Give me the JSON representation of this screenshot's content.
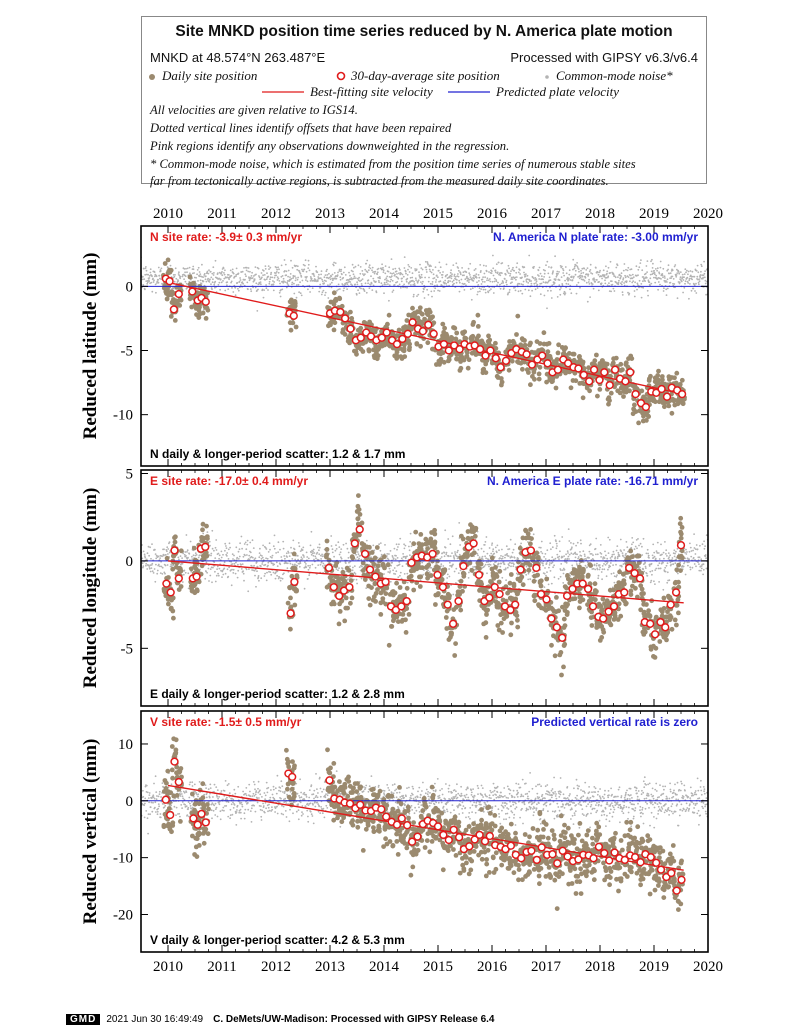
{
  "legend": {
    "title": "Site MNKD position time series reduced by N. America plate motion",
    "site_info": "MNKD at 48.574°N 263.487°E",
    "processing": "Processed with GIPSY v6.3/v6.4",
    "daily_label": "Daily site position",
    "avg_label": "30-day-average site position",
    "noise_label": "Common-mode noise*",
    "bestfit_label": "Best-fitting site velocity",
    "predicted_label": "Predicted plate velocity",
    "notes": [
      "All velocities are given relative to IGS14.",
      "Dotted vertical lines identify offsets that have been repaired",
      "Pink regions identify any observations downweighted in the regression.",
      "* Common-mode noise, which is estimated from the position time series of numerous stable sites",
      "far from tectonically active regions, is subtracted from the measured daily site coordinates."
    ]
  },
  "colors": {
    "daily": "#9b8a6f",
    "noise": "#b3b3b3",
    "avg_edge": "#e01b1b",
    "bestfit": "#e01b1b",
    "predicted": "#2020d0",
    "axis": "#000000"
  },
  "x_ticks": [
    "2010",
    "2011",
    "2012",
    "2013",
    "2014",
    "2015",
    "2016",
    "2017",
    "2018",
    "2019",
    "2020"
  ],
  "chart_data": [
    {
      "type": "scatter",
      "component": "N",
      "ylabel": "Reduced latitude (mm)",
      "xlim": [
        2009.5,
        2020.0
      ],
      "ylim": [
        -14,
        4.7
      ],
      "yticks": [
        0,
        -5,
        -10
      ],
      "rate_label": "N site rate:  -3.9± 0.3 mm/yr",
      "plate_label": "N. America N plate rate: -3.00 mm/yr",
      "scatter_label": "N daily & longer-period scatter:   1.2 &   1.7 mm",
      "site_rate": -0.92,
      "fit": {
        "x": [
          2010.0,
          2019.55
        ],
        "y": [
          0.3,
          -8.4
        ]
      },
      "averages": [
        [
          2009.96,
          0.6
        ],
        [
          2010.03,
          0.4
        ],
        [
          2010.11,
          -1.8
        ],
        [
          2010.2,
          -0.6
        ],
        [
          2010.45,
          -0.4
        ],
        [
          2010.55,
          -1.1
        ],
        [
          2010.62,
          -0.9
        ],
        [
          2010.7,
          -1.2
        ],
        [
          2012.25,
          -2.1
        ],
        [
          2012.33,
          -2.3
        ],
        [
          2013.0,
          -2.1
        ],
        [
          2013.09,
          -1.9
        ],
        [
          2013.19,
          -2.0
        ],
        [
          2013.28,
          -2.5
        ],
        [
          2013.38,
          -3.3
        ],
        [
          2013.48,
          -4.2
        ],
        [
          2013.57,
          -4.0
        ],
        [
          2013.67,
          -3.6
        ],
        [
          2013.76,
          -3.9
        ],
        [
          2013.86,
          -4.2
        ],
        [
          2013.96,
          -4.0
        ],
        [
          2014.05,
          -3.6
        ],
        [
          2014.15,
          -4.2
        ],
        [
          2014.24,
          -4.5
        ],
        [
          2014.34,
          -4.1
        ],
        [
          2014.44,
          -3.7
        ],
        [
          2014.53,
          -2.8
        ],
        [
          2014.63,
          -3.3
        ],
        [
          2014.72,
          -3.5
        ],
        [
          2014.82,
          -3.0
        ],
        [
          2014.92,
          -3.7
        ],
        [
          2015.01,
          -4.7
        ],
        [
          2015.11,
          -4.5
        ],
        [
          2015.2,
          -5.0
        ],
        [
          2015.3,
          -4.6
        ],
        [
          2015.4,
          -4.9
        ],
        [
          2015.49,
          -4.5
        ],
        [
          2015.59,
          -4.7
        ],
        [
          2015.68,
          -4.6
        ],
        [
          2015.78,
          -4.9
        ],
        [
          2015.88,
          -5.4
        ],
        [
          2015.97,
          -5.0
        ],
        [
          2016.07,
          -5.6
        ],
        [
          2016.16,
          -6.3
        ],
        [
          2016.26,
          -5.8
        ],
        [
          2016.36,
          -5.2
        ],
        [
          2016.45,
          -4.9
        ],
        [
          2016.55,
          -5.1
        ],
        [
          2016.64,
          -5.3
        ],
        [
          2016.74,
          -6.1
        ],
        [
          2016.84,
          -5.7
        ],
        [
          2016.93,
          -5.4
        ],
        [
          2017.03,
          -6.0
        ],
        [
          2017.12,
          -6.7
        ],
        [
          2017.22,
          -6.5
        ],
        [
          2017.32,
          -5.7
        ],
        [
          2017.41,
          -6.0
        ],
        [
          2017.51,
          -6.3
        ],
        [
          2017.6,
          -6.4
        ],
        [
          2017.7,
          -6.9
        ],
        [
          2017.8,
          -7.4
        ],
        [
          2017.89,
          -6.5
        ],
        [
          2017.99,
          -7.3
        ],
        [
          2018.08,
          -6.7
        ],
        [
          2018.18,
          -7.7
        ],
        [
          2018.28,
          -6.5
        ],
        [
          2018.37,
          -7.2
        ],
        [
          2018.47,
          -7.4
        ],
        [
          2018.56,
          -6.7
        ],
        [
          2018.66,
          -8.4
        ],
        [
          2018.76,
          -9.1
        ],
        [
          2018.85,
          -9.4
        ],
        [
          2018.95,
          -8.2
        ],
        [
          2019.04,
          -8.3
        ],
        [
          2019.14,
          -8.0
        ],
        [
          2019.24,
          -8.6
        ],
        [
          2019.33,
          -7.9
        ],
        [
          2019.43,
          -8.1
        ],
        [
          2019.52,
          -8.4
        ]
      ]
    },
    {
      "type": "scatter",
      "component": "E",
      "ylabel": "Reduced longitude (mm)",
      "xlim": [
        2009.5,
        2020.0
      ],
      "ylim": [
        -8.3,
        5.2
      ],
      "yticks": [
        5,
        0,
        -5
      ],
      "rate_label": "E site rate: -17.0± 0.4 mm/yr",
      "plate_label": "N. America E plate rate: -16.71 mm/yr",
      "scatter_label": "E daily & longer-period scatter:   1.2 &   2.8 mm",
      "site_rate": -0.27,
      "fit": {
        "x": [
          2010.0,
          2019.55
        ],
        "y": [
          0.0,
          -2.4
        ]
      },
      "averages": [
        [
          2009.97,
          -1.3
        ],
        [
          2010.05,
          -1.8
        ],
        [
          2010.12,
          0.6
        ],
        [
          2010.2,
          -1.0
        ],
        [
          2010.46,
          -1.0
        ],
        [
          2010.53,
          -0.9
        ],
        [
          2010.61,
          0.7
        ],
        [
          2010.69,
          0.8
        ],
        [
          2012.27,
          -3.0
        ],
        [
          2012.34,
          -1.2
        ],
        [
          2012.98,
          -0.4
        ],
        [
          2013.07,
          -1.5
        ],
        [
          2013.17,
          -2.0
        ],
        [
          2013.26,
          -1.7
        ],
        [
          2013.36,
          -1.5
        ],
        [
          2013.46,
          1.0
        ],
        [
          2013.55,
          1.8
        ],
        [
          2013.65,
          0.4
        ],
        [
          2013.74,
          -0.5
        ],
        [
          2013.84,
          -0.9
        ],
        [
          2013.94,
          -1.3
        ],
        [
          2014.03,
          -1.2
        ],
        [
          2014.13,
          -2.6
        ],
        [
          2014.22,
          -2.8
        ],
        [
          2014.32,
          -2.6
        ],
        [
          2014.42,
          -2.3
        ],
        [
          2014.51,
          -0.1
        ],
        [
          2014.61,
          0.2
        ],
        [
          2014.7,
          0.3
        ],
        [
          2014.8,
          0.2
        ],
        [
          2014.9,
          0.4
        ],
        [
          2014.99,
          -0.8
        ],
        [
          2015.09,
          -1.5
        ],
        [
          2015.18,
          -2.5
        ],
        [
          2015.28,
          -3.6
        ],
        [
          2015.38,
          -2.3
        ],
        [
          2015.47,
          -0.3
        ],
        [
          2015.57,
          0.8
        ],
        [
          2015.66,
          1.0
        ],
        [
          2015.76,
          -0.8
        ],
        [
          2015.86,
          -2.3
        ],
        [
          2015.95,
          -2.1
        ],
        [
          2016.05,
          -1.5
        ],
        [
          2016.14,
          -1.9
        ],
        [
          2016.24,
          -2.6
        ],
        [
          2016.34,
          -2.8
        ],
        [
          2016.43,
          -2.5
        ],
        [
          2016.53,
          -0.5
        ],
        [
          2016.62,
          0.5
        ],
        [
          2016.72,
          0.6
        ],
        [
          2016.82,
          -0.4
        ],
        [
          2016.91,
          -1.9
        ],
        [
          2017.01,
          -2.2
        ],
        [
          2017.1,
          -3.3
        ],
        [
          2017.2,
          -3.8
        ],
        [
          2017.3,
          -4.4
        ],
        [
          2017.39,
          -2.0
        ],
        [
          2017.49,
          -1.6
        ],
        [
          2017.58,
          -1.3
        ],
        [
          2017.68,
          -1.3
        ],
        [
          2017.78,
          -1.6
        ],
        [
          2017.87,
          -2.6
        ],
        [
          2017.97,
          -3.2
        ],
        [
          2018.06,
          -3.3
        ],
        [
          2018.16,
          -2.9
        ],
        [
          2018.26,
          -2.6
        ],
        [
          2018.35,
          -1.9
        ],
        [
          2018.45,
          -1.8
        ],
        [
          2018.54,
          -0.4
        ],
        [
          2018.64,
          -0.7
        ],
        [
          2018.74,
          -1.0
        ],
        [
          2018.83,
          -3.5
        ],
        [
          2018.93,
          -3.6
        ],
        [
          2019.02,
          -4.2
        ],
        [
          2019.12,
          -3.5
        ],
        [
          2019.21,
          -3.8
        ],
        [
          2019.31,
          -2.5
        ],
        [
          2019.41,
          -1.8
        ],
        [
          2019.5,
          0.9
        ]
      ]
    },
    {
      "type": "scatter",
      "component": "V",
      "ylabel": "Reduced vertical (mm)",
      "xlim": [
        2009.5,
        2020.0
      ],
      "ylim": [
        -26.6,
        15.8
      ],
      "yticks": [
        10,
        0,
        -10,
        -20
      ],
      "rate_label": "V site rate:  -1.5± 0.5 mm/yr",
      "plate_label": "Predicted vertical rate is zero",
      "scatter_label": "V daily & longer-period scatter:   4.2 &   5.3 mm",
      "site_rate": -1.5,
      "fit": {
        "x": [
          2010.0,
          2019.55
        ],
        "y": [
          2.7,
          -12.2
        ]
      },
      "averages": [
        [
          2009.96,
          0.2
        ],
        [
          2010.04,
          -2.5
        ],
        [
          2010.12,
          6.9
        ],
        [
          2010.2,
          3.3
        ],
        [
          2010.47,
          -3.1
        ],
        [
          2010.55,
          -4.2
        ],
        [
          2010.62,
          -2.3
        ],
        [
          2010.7,
          -3.8
        ],
        [
          2012.23,
          4.8
        ],
        [
          2012.3,
          4.2
        ],
        [
          2012.99,
          3.6
        ],
        [
          2013.08,
          0.4
        ],
        [
          2013.18,
          0.2
        ],
        [
          2013.27,
          -0.3
        ],
        [
          2013.37,
          -0.5
        ],
        [
          2013.47,
          -1.3
        ],
        [
          2013.56,
          -0.7
        ],
        [
          2013.66,
          -1.7
        ],
        [
          2013.76,
          -1.8
        ],
        [
          2013.85,
          -1.2
        ],
        [
          2013.95,
          -1.5
        ],
        [
          2014.04,
          -2.8
        ],
        [
          2014.14,
          -3.7
        ],
        [
          2014.24,
          -4.2
        ],
        [
          2014.33,
          -3.1
        ],
        [
          2014.43,
          -4.3
        ],
        [
          2014.52,
          -7.2
        ],
        [
          2014.62,
          -6.3
        ],
        [
          2014.72,
          -4.1
        ],
        [
          2014.81,
          -3.5
        ],
        [
          2014.91,
          -3.9
        ],
        [
          2015.0,
          -4.5
        ],
        [
          2015.1,
          -6.0
        ],
        [
          2015.2,
          -6.9
        ],
        [
          2015.29,
          -5.1
        ],
        [
          2015.39,
          -6.4
        ],
        [
          2015.48,
          -8.5
        ],
        [
          2015.58,
          -8.0
        ],
        [
          2015.68,
          -6.8
        ],
        [
          2015.77,
          -6.0
        ],
        [
          2015.87,
          -7.1
        ],
        [
          2015.96,
          -6.2
        ],
        [
          2016.06,
          -7.8
        ],
        [
          2016.16,
          -8.1
        ],
        [
          2016.25,
          -8.5
        ],
        [
          2016.35,
          -7.9
        ],
        [
          2016.44,
          -9.5
        ],
        [
          2016.54,
          -10.1
        ],
        [
          2016.64,
          -9.0
        ],
        [
          2016.73,
          -8.8
        ],
        [
          2016.83,
          -10.4
        ],
        [
          2016.92,
          -8.2
        ],
        [
          2017.02,
          -9.5
        ],
        [
          2017.12,
          -9.4
        ],
        [
          2017.21,
          -11.0
        ],
        [
          2017.31,
          -8.8
        ],
        [
          2017.4,
          -9.8
        ],
        [
          2017.5,
          -10.6
        ],
        [
          2017.6,
          -10.3
        ],
        [
          2017.69,
          -9.5
        ],
        [
          2017.79,
          -9.6
        ],
        [
          2017.88,
          -10.1
        ],
        [
          2017.98,
          -8.1
        ],
        [
          2018.08,
          -9.2
        ],
        [
          2018.17,
          -10.5
        ],
        [
          2018.27,
          -9.1
        ],
        [
          2018.36,
          -10.1
        ],
        [
          2018.46,
          -10.4
        ],
        [
          2018.56,
          -9.6
        ],
        [
          2018.65,
          -9.9
        ],
        [
          2018.75,
          -10.8
        ],
        [
          2018.84,
          -9.4
        ],
        [
          2018.94,
          -9.9
        ],
        [
          2019.04,
          -10.9
        ],
        [
          2019.13,
          -12.1
        ],
        [
          2019.23,
          -13.4
        ],
        [
          2019.32,
          -12.7
        ],
        [
          2019.42,
          -15.8
        ],
        [
          2019.51,
          -13.9
        ]
      ]
    }
  ],
  "footer": {
    "logo": "GMD",
    "date": "2021 Jun 30 16:49:49",
    "credit": "C. DeMets/UW-Madison: Processed with GIPSY Release 6.4"
  }
}
